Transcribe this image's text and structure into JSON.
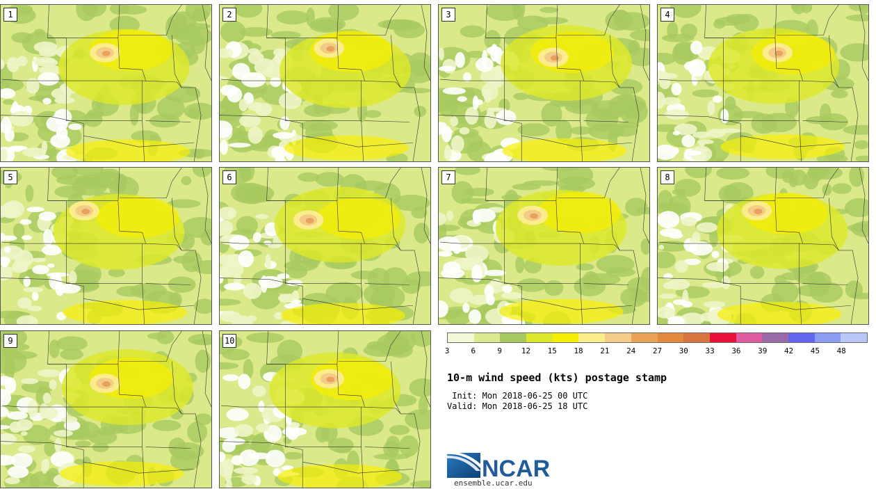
{
  "figure": {
    "title": "10-m wind speed (kts) postage stamp",
    "init_label": " Init:",
    "init_value": "Mon 2018-06-25 00 UTC",
    "valid_label": "Valid:",
    "valid_value": "Mon 2018-06-25 18 UTC"
  },
  "members": [
    "1",
    "2",
    "3",
    "4",
    "5",
    "6",
    "7",
    "8",
    "9",
    "10"
  ],
  "colorbar": {
    "ticks": [
      "3",
      "6",
      "9",
      "12",
      "15",
      "18",
      "21",
      "24",
      "27",
      "30",
      "33",
      "36",
      "39",
      "42",
      "45",
      "48"
    ],
    "colors": [
      "#f3f7d6",
      "#dde98f",
      "#a8c95f",
      "#dce82c",
      "#f6ee05",
      "#fbed8b",
      "#f3cc87",
      "#eaa356",
      "#e48a3f",
      "#d9763f",
      "#e9103a",
      "#e05ca0",
      "#9a6aa8",
      "#6366f0",
      "#8a9df3",
      "#b8c7f6"
    ]
  },
  "logo": {
    "name": "NCAR",
    "url": "ensemble.ucar.edu",
    "brand_color": "#1f5c99"
  }
}
